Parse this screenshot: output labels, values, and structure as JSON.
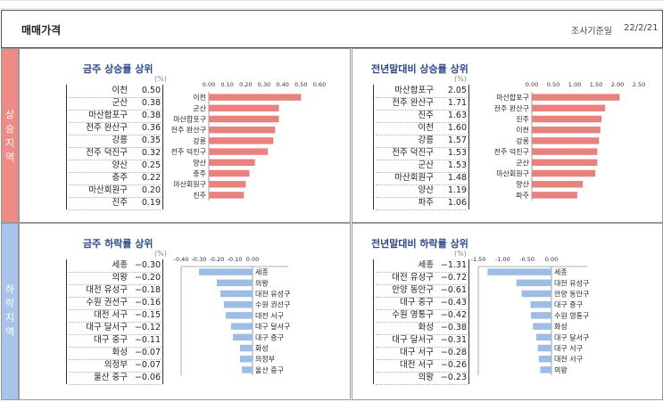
{
  "header": {
    "title": "매매가격",
    "survey_label": "조사기준일",
    "survey_date": "22/2/21"
  },
  "side": {
    "rise": "상승지역",
    "fall": "하락지역"
  },
  "unit": "(%)",
  "chart_data": [
    {
      "id": "weekly_rise",
      "type": "bar",
      "title": "금주 상승률 상위",
      "xlim": [
        0,
        0.6
      ],
      "xticks": [
        "0.00",
        "0.10",
        "0.20",
        "0.30",
        "0.40",
        "0.50",
        "0.60"
      ],
      "categories": [
        "이천",
        "군산",
        "마산합포구",
        "전주 완산구",
        "강릉",
        "전주 덕진구",
        "양산",
        "충주",
        "마산회원구",
        "진주"
      ],
      "values": [
        0.5,
        0.38,
        0.38,
        0.36,
        0.35,
        0.32,
        0.25,
        0.22,
        0.2,
        0.19
      ],
      "value_labels": [
        "0.50",
        "0.38",
        "0.38",
        "0.36",
        "0.35",
        "0.32",
        "0.25",
        "0.22",
        "0.20",
        "0.19"
      ],
      "color": "#e8827f"
    },
    {
      "id": "ytd_rise",
      "type": "bar",
      "title": "전년말대비 상승률 상위",
      "xlim": [
        0,
        2.5
      ],
      "xticks": [
        "0.00",
        "0.50",
        "1.00",
        "1.50",
        "2.00",
        "2.50"
      ],
      "categories": [
        "마산합포구",
        "전주 완산구",
        "진주",
        "이천",
        "강릉",
        "전주 덕진구",
        "군산",
        "마산회원구",
        "양산",
        "파주"
      ],
      "values": [
        2.05,
        1.71,
        1.63,
        1.6,
        1.57,
        1.53,
        1.53,
        1.48,
        1.19,
        1.06
      ],
      "value_labels": [
        "2.05",
        "1.71",
        "1.63",
        "1.60",
        "1.57",
        "1.53",
        "1.53",
        "1.48",
        "1.19",
        "1.06"
      ],
      "color": "#e8827f"
    },
    {
      "id": "weekly_fall",
      "type": "bar",
      "title": "금주 하락률 상위",
      "xlim": [
        -0.4,
        0
      ],
      "xticks": [
        "-0.40",
        "-0.30",
        "-0.20",
        "-0.10",
        "0.00"
      ],
      "categories": [
        "세종",
        "의왕",
        "대전 유성구",
        "수원 권선구",
        "대전 서구",
        "대구 달서구",
        "대구 중구",
        "화성",
        "의정부",
        "울산 중구"
      ],
      "values": [
        -0.3,
        -0.2,
        -0.18,
        -0.16,
        -0.15,
        -0.12,
        -0.11,
        -0.07,
        -0.07,
        -0.06
      ],
      "value_labels": [
        "−0.30",
        "−0.20",
        "−0.18",
        "−0.16",
        "−0.15",
        "−0.12",
        "−0.11",
        "−0.07",
        "−0.07",
        "−0.06"
      ],
      "color": "#9dbde6"
    },
    {
      "id": "ytd_fall",
      "type": "bar",
      "title": "전년말대비 하락률 상위",
      "xlim": [
        -1.5,
        0
      ],
      "xticks": [
        "-1.50",
        "-1.00",
        "-0.50",
        "0.00"
      ],
      "categories": [
        "세종",
        "대전 유성구",
        "안양 동안구",
        "대구 중구",
        "수원 영통구",
        "화성",
        "대구 달서구",
        "대구 서구",
        "대전 서구",
        "의왕"
      ],
      "values": [
        -1.31,
        -0.72,
        -0.61,
        -0.43,
        -0.42,
        -0.38,
        -0.31,
        -0.28,
        -0.26,
        -0.23
      ],
      "value_labels": [
        "−1.31",
        "−0.72",
        "−0.61",
        "−0.43",
        "−0.42",
        "−0.38",
        "−0.31",
        "−0.28",
        "−0.26",
        "−0.23"
      ],
      "color": "#9dbde6"
    }
  ]
}
